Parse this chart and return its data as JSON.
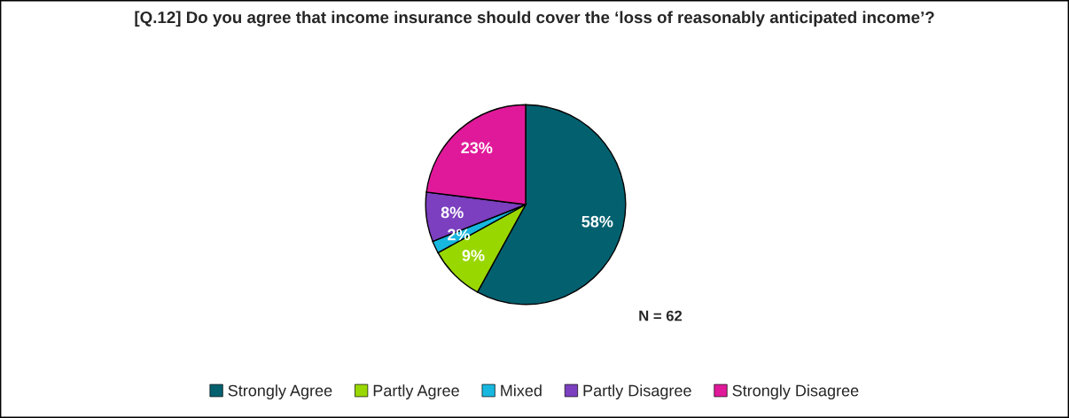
{
  "chart_data": {
    "type": "pie",
    "title": "[Q.12] Do you agree that income insurance should cover the ‘loss of reasonably anticipated income’?",
    "categories": [
      "Strongly Agree",
      "Partly Agree",
      "Mixed",
      "Partly Disagree",
      "Strongly Disagree"
    ],
    "values": [
      58,
      9,
      2,
      8,
      23
    ],
    "colors": [
      "#03606f",
      "#99d700",
      "#17b7df",
      "#7b3fbf",
      "#e0199a"
    ],
    "value_labels": [
      "58%",
      "9%",
      "2%",
      "8%",
      "23%"
    ],
    "annotations": [
      "N = 62"
    ],
    "legend": "bottom"
  }
}
